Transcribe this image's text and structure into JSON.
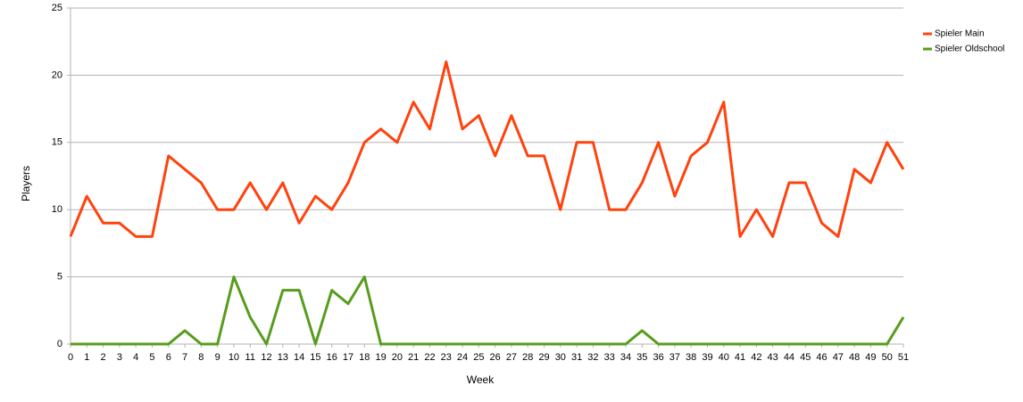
{
  "chart_data": {
    "type": "line",
    "xlabel": "Week",
    "ylabel": "Players",
    "x": [
      0,
      1,
      2,
      3,
      4,
      5,
      6,
      7,
      8,
      9,
      10,
      11,
      12,
      13,
      14,
      15,
      16,
      17,
      18,
      19,
      20,
      21,
      22,
      23,
      24,
      25,
      26,
      27,
      28,
      29,
      30,
      31,
      32,
      33,
      34,
      35,
      36,
      37,
      38,
      39,
      40,
      41,
      42,
      43,
      44,
      45,
      46,
      47,
      48,
      49,
      50,
      51
    ],
    "xlim": [
      0,
      51
    ],
    "xticks": [
      0,
      1,
      2,
      3,
      4,
      5,
      6,
      7,
      8,
      9,
      10,
      11,
      12,
      13,
      14,
      15,
      16,
      17,
      18,
      19,
      20,
      21,
      22,
      23,
      24,
      25,
      26,
      27,
      28,
      29,
      30,
      31,
      32,
      33,
      34,
      35,
      36,
      37,
      38,
      39,
      40,
      41,
      42,
      43,
      44,
      45,
      46,
      47,
      48,
      49,
      50,
      51
    ],
    "ylim": [
      0,
      25
    ],
    "yticks": [
      0,
      5,
      10,
      15,
      20,
      25
    ],
    "grid": true,
    "legend": "right",
    "series": [
      {
        "name": "Spieler Main",
        "color": "#ff420e",
        "values": [
          8,
          11,
          9,
          9,
          8,
          8,
          14,
          13,
          12,
          10,
          10,
          12,
          10,
          12,
          9,
          11,
          10,
          12,
          15,
          16,
          15,
          18,
          16,
          21,
          16,
          17,
          14,
          17,
          14,
          14,
          10,
          15,
          15,
          10,
          10,
          12,
          15,
          11,
          14,
          15,
          18,
          8,
          10,
          8,
          12,
          12,
          9,
          8,
          13,
          12,
          15,
          13
        ]
      },
      {
        "name": "Spieler Oldschool",
        "color": "#579d1c",
        "values": [
          0,
          0,
          0,
          0,
          0,
          0,
          0,
          1,
          0,
          0,
          5,
          2,
          0,
          4,
          4,
          0,
          4,
          3,
          5,
          0,
          0,
          0,
          0,
          0,
          0,
          0,
          0,
          0,
          0,
          0,
          0,
          0,
          0,
          0,
          0,
          1,
          0,
          0,
          0,
          0,
          0,
          0,
          0,
          0,
          0,
          0,
          0,
          0,
          0,
          0,
          0,
          2
        ]
      }
    ]
  }
}
